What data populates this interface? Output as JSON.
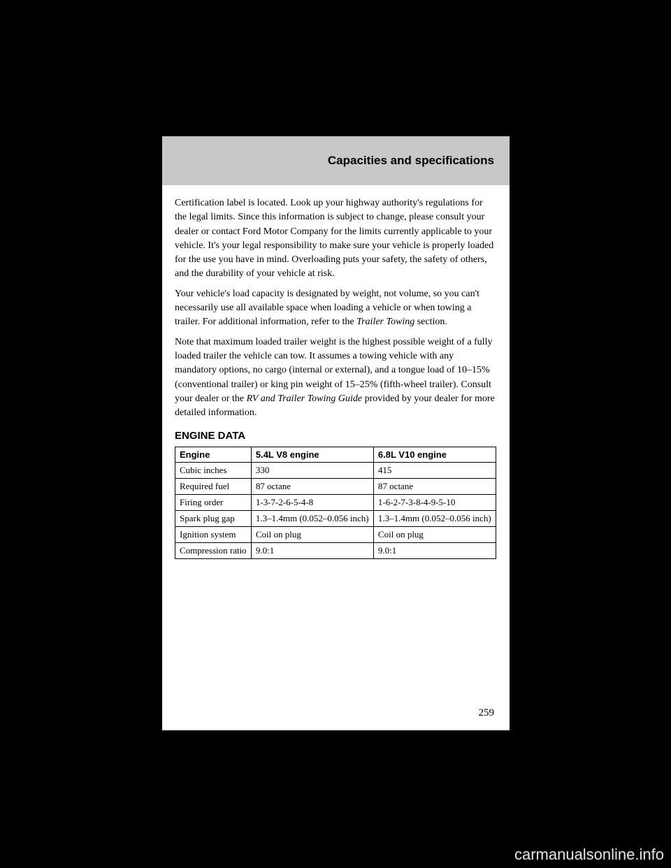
{
  "header": {
    "title": "Capacities and specifications"
  },
  "intro": {
    "p1_pre": "Certification label is located. Look up your highway authority's regulations for the legal limits. Since this information is subject to change, please consult your dealer or contact Ford Motor Company for the limits currently applicable to your vehicle. It's your legal responsibility to make sure your vehicle is properly loaded for the use you have in mind. Overloading puts your safety, the safety of others, and the durability of your vehicle at risk.",
    "p2": "Your vehicle's load capacity is designated by weight, not volume, so you can't necessarily use all available space when loading a vehicle or when towing a trailer. For additional information, refer to the ",
    "p2_link": "Trailer Towing",
    "p2_after": " section.",
    "p3": "Note that maximum loaded trailer weight is the highest possible weight of a fully loaded trailer the vehicle can tow. It assumes a towing vehicle with any mandatory options, no cargo (internal or external), and a tongue load of 10–15% (conventional trailer) or king pin weight of 15–25% (fifth-wheel trailer). Consult your dealer or the ",
    "p3_link": "RV and Trailer Towing Guide",
    "p3_after": " provided by your dealer for more detailed information."
  },
  "section_title": "ENGINE DATA",
  "table": {
    "columns": [
      "Engine",
      "5.4L V8 engine",
      "6.8L V10 engine"
    ],
    "rows": [
      [
        "Cubic inches",
        "330",
        "415"
      ],
      [
        "Required fuel",
        "87 octane",
        "87 octane"
      ],
      [
        "Firing order",
        "1-3-7-2-6-5-4-8",
        "1-6-2-7-3-8-4-9-5-10"
      ],
      [
        "Spark plug gap",
        "1.3–1.4mm (0.052–0.056 inch)",
        "1.3–1.4mm (0.052–0.056 inch)"
      ],
      [
        "Ignition system",
        "Coil on plug",
        "Coil on plug"
      ],
      [
        "Compression ratio",
        "9.0:1",
        "9.0:1"
      ]
    ]
  },
  "page_number": "259",
  "watermark": "carmanualsonline.info"
}
